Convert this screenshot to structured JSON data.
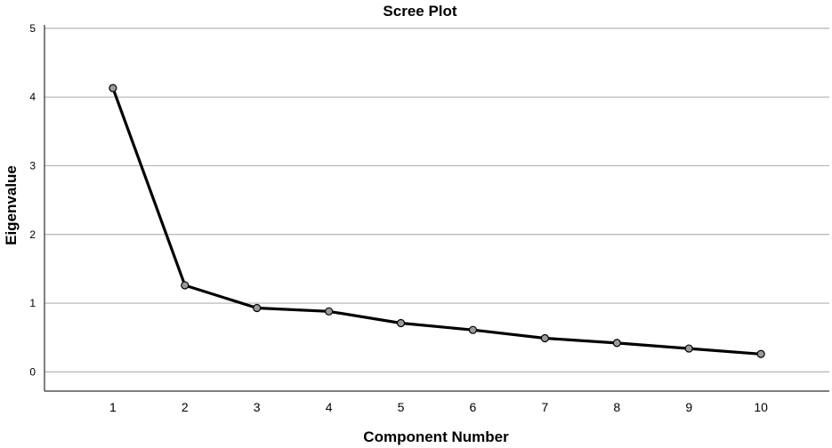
{
  "chart_data": {
    "type": "line",
    "title": "Scree Plot",
    "xlabel": "Component Number",
    "ylabel": "Eigenvalue",
    "x": [
      1,
      2,
      3,
      4,
      5,
      6,
      7,
      8,
      9,
      10
    ],
    "x_tick_labels": [
      "1",
      "2",
      "3",
      "4",
      "5",
      "6",
      "7",
      "8",
      "9",
      "10"
    ],
    "values": [
      4.13,
      1.26,
      0.93,
      0.88,
      0.71,
      0.61,
      0.49,
      0.42,
      0.34,
      0.26
    ],
    "xlim": [
      0.05,
      10.95
    ],
    "ylim": [
      -0.28,
      5.05
    ],
    "y_ticks": [
      0,
      1,
      2,
      3,
      4,
      5
    ],
    "y_tick_labels": [
      "0",
      "1",
      "2",
      "3",
      "4",
      "5"
    ],
    "grid": true,
    "legend": "none",
    "colors": {
      "line": "#000000",
      "marker_fill": "#9a9a9a",
      "grid": "#b4b4b4"
    }
  }
}
